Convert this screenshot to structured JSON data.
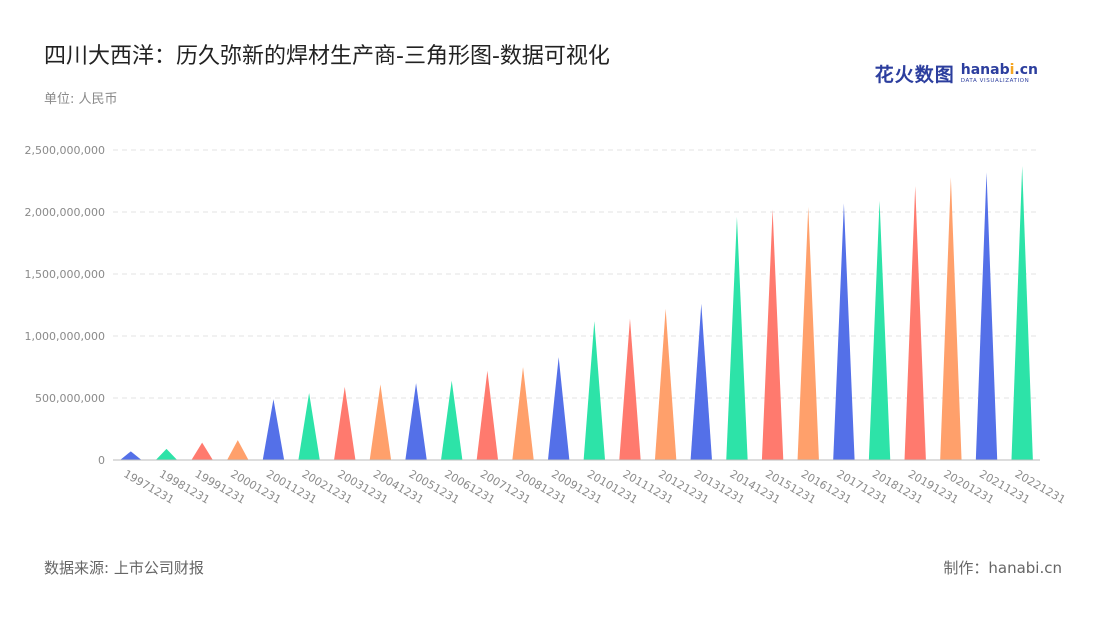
{
  "title": "四川大西洋：历久弥新的焊材生产商-三角形图-数据可视化",
  "unit_label": "单位: 人民币",
  "logo": {
    "cn": "花火数图",
    "en_prefix": "hanab",
    "en_dot": "i",
    "en_suffix": ".cn",
    "sub": "DATA VISUALIZATION"
  },
  "footer": {
    "source": "数据来源: 上市公司财报",
    "credit": "制作：hanabi.cn"
  },
  "colors": [
    "#5470e8",
    "#2de3a8",
    "#ff7a6e",
    "#ffa06b"
  ],
  "chart_data": {
    "type": "bar",
    "mark": "triangle",
    "title": "四川大西洋：历久弥新的焊材生产商-三角形图-数据可视化",
    "xlabel": "",
    "ylabel": "",
    "ylim": [
      0,
      2500000000
    ],
    "yticks": [
      0,
      500000000,
      1000000000,
      1500000000,
      2000000000,
      2500000000
    ],
    "ytick_labels": [
      "0",
      "500,000,000",
      "1,000,000,000",
      "1,500,000,000",
      "2,000,000,000",
      "2,500,000,000"
    ],
    "grid": true,
    "categories": [
      "19971231",
      "19981231",
      "19991231",
      "20001231",
      "20011231",
      "20021231",
      "20031231",
      "20041231",
      "20051231",
      "20061231",
      "20071231",
      "20081231",
      "20091231",
      "20101231",
      "20111231",
      "20121231",
      "20131231",
      "20141231",
      "20151231",
      "20161231",
      "20171231",
      "20181231",
      "20191231",
      "20201231",
      "20211231",
      "20221231"
    ],
    "values": [
      70000000,
      90000000,
      140000000,
      160000000,
      490000000,
      540000000,
      590000000,
      610000000,
      620000000,
      640000000,
      720000000,
      750000000,
      830000000,
      1120000000,
      1140000000,
      1220000000,
      1260000000,
      1960000000,
      2020000000,
      2040000000,
      2070000000,
      2090000000,
      2210000000,
      2280000000,
      2320000000,
      2370000000
    ]
  }
}
